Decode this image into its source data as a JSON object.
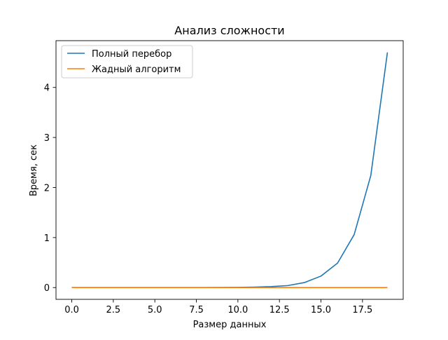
{
  "chart_data": {
    "type": "line",
    "title": "Анализ сложности",
    "xlabel": "Размер данных",
    "ylabel": "Время, сек",
    "xlim": [
      -0.95,
      19.95
    ],
    "ylim": [
      -0.235,
      4.935
    ],
    "xticks": [
      0.0,
      2.5,
      5.0,
      7.5,
      10.0,
      12.5,
      15.0,
      17.5
    ],
    "xtick_labels": [
      "0.0",
      "2.5",
      "5.0",
      "7.5",
      "10.0",
      "12.5",
      "15.0",
      "17.5"
    ],
    "yticks": [
      0,
      1,
      2,
      3,
      4
    ],
    "ytick_labels": [
      "0",
      "1",
      "2",
      "3",
      "4"
    ],
    "grid": false,
    "legend_position": "top-left",
    "x": [
      0,
      1,
      2,
      3,
      4,
      5,
      6,
      7,
      8,
      9,
      10,
      11,
      12,
      13,
      14,
      15,
      16,
      17,
      18,
      19
    ],
    "series": [
      {
        "name": "Полный перебор",
        "color": "#1f77b4",
        "values": [
          0.0,
          0.0,
          0.0,
          0.0,
          0.0,
          0.0,
          0.0,
          0.0005,
          0.001,
          0.003,
          0.005,
          0.01,
          0.02,
          0.04,
          0.1,
          0.23,
          0.49,
          1.06,
          2.24,
          4.7
        ]
      },
      {
        "name": "Жадный алгоритм",
        "color": "#ff7f0e",
        "values": [
          0.0,
          0.0,
          0.0,
          0.0,
          0.0,
          0.0,
          0.0,
          0.0,
          0.0,
          0.0,
          0.0,
          0.0,
          0.0,
          0.0,
          0.0,
          0.0,
          0.0,
          0.0,
          0.0,
          0.0
        ]
      }
    ]
  }
}
